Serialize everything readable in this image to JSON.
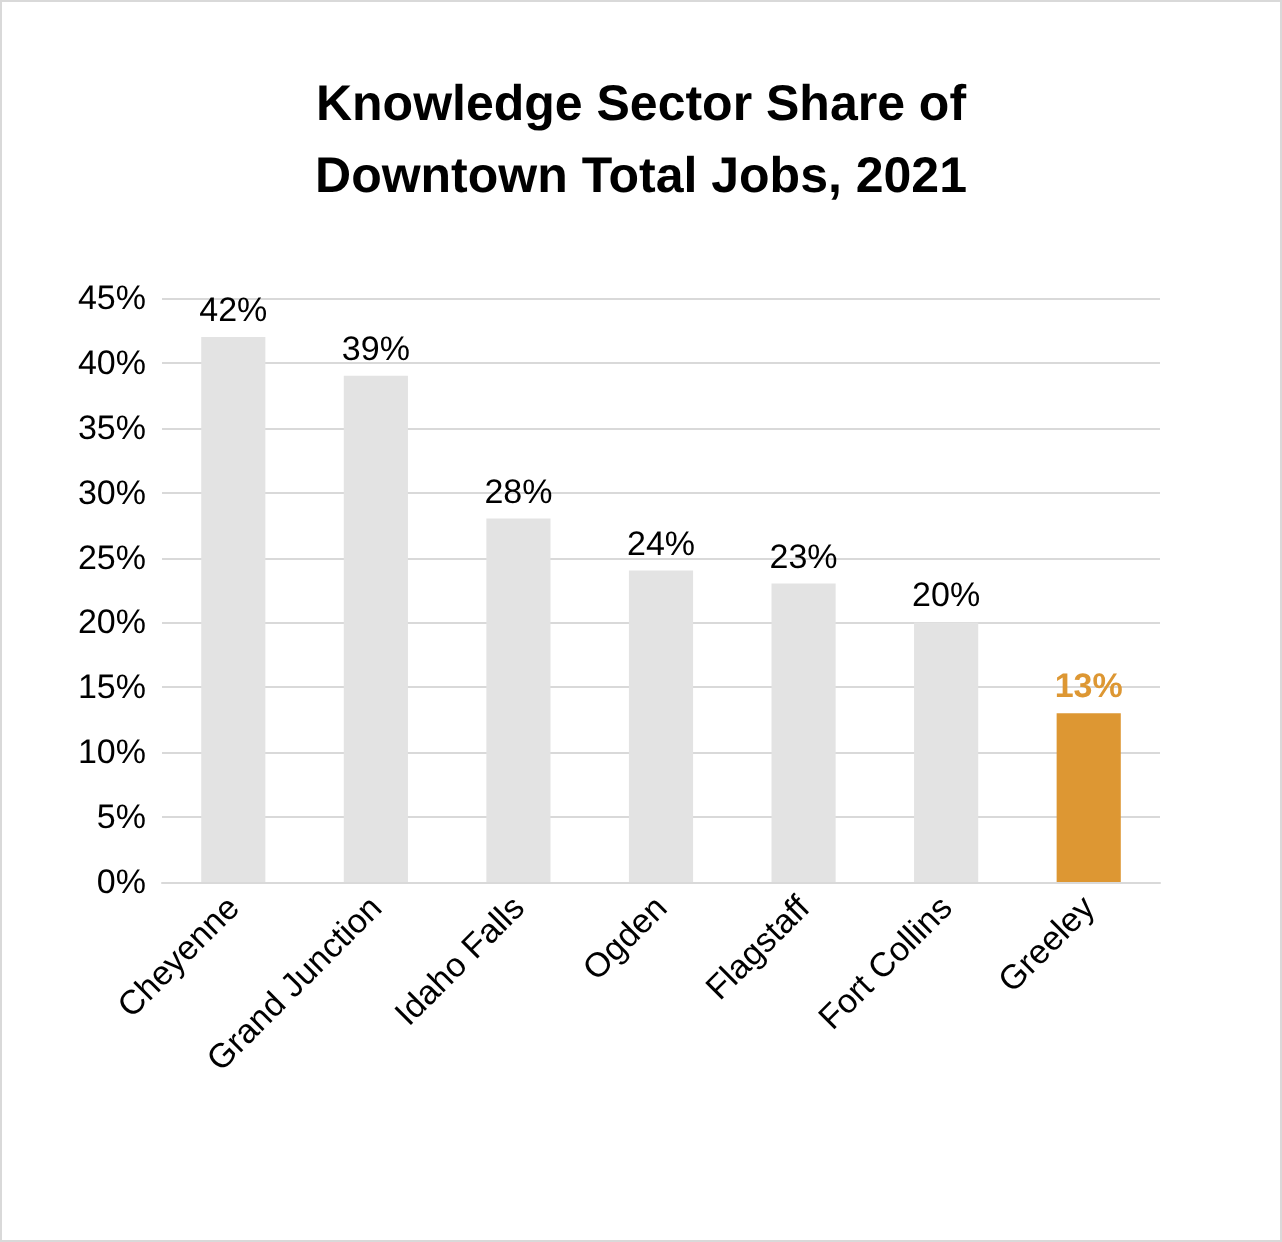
{
  "chart_data": {
    "type": "bar",
    "title": "Knowledge Sector Share of\nDowntown Total Jobs, 2021",
    "categories": [
      "Cheyenne",
      "Grand Junction",
      "Idaho Falls",
      "Ogden",
      "Flagstaff",
      "Fort Collins",
      "Greeley"
    ],
    "values": [
      42,
      39,
      28,
      24,
      23,
      20,
      13
    ],
    "value_labels": [
      "42%",
      "39%",
      "28%",
      "24%",
      "23%",
      "20%",
      "13%"
    ],
    "colors": [
      "#e3e3e3",
      "#e3e3e3",
      "#e3e3e3",
      "#e3e3e3",
      "#e3e3e3",
      "#e3e3e3",
      "#dd9733"
    ],
    "ylim": [
      0,
      45
    ],
    "yticks": [
      {
        "value": 0,
        "label": "0%"
      },
      {
        "value": 5,
        "label": "5%"
      },
      {
        "value": 10,
        "label": "10%"
      },
      {
        "value": 15,
        "label": "15%"
      },
      {
        "value": 20,
        "label": "20%"
      },
      {
        "value": 25,
        "label": "25%"
      },
      {
        "value": 30,
        "label": "30%"
      },
      {
        "value": 35,
        "label": "35%"
      },
      {
        "value": 40,
        "label": "40%"
      },
      {
        "value": 45,
        "label": "45%"
      }
    ],
    "grid": "y"
  }
}
